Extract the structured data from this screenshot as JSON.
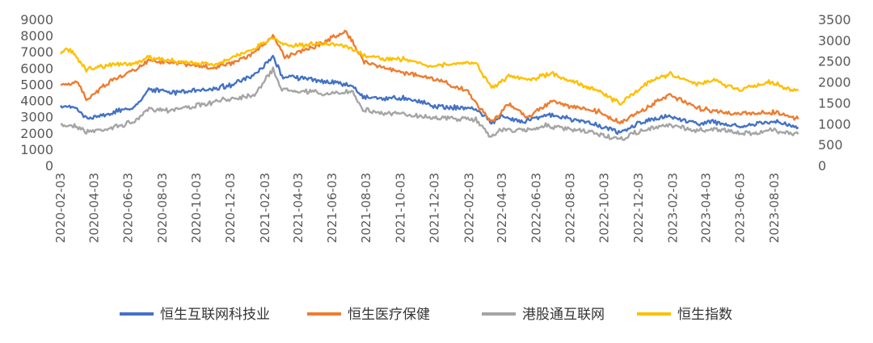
{
  "chart_data": {
    "type": "line",
    "title": "",
    "xlabel": "",
    "ylabel": "",
    "y_left": {
      "range": [
        0,
        9000
      ],
      "ticks": [
        0,
        1000,
        2000,
        3000,
        4000,
        5000,
        6000,
        7000,
        8000,
        9000
      ]
    },
    "y_right": {
      "range": [
        0,
        3500
      ],
      "ticks": [
        0,
        500,
        1000,
        1500,
        2000,
        2500,
        3000,
        3500
      ]
    },
    "x_range": [
      "2020-02-03",
      "2023-10-03"
    ],
    "x_tick_labels": [
      "2020-02-03",
      "2020-04-03",
      "2020-06-03",
      "2020-08-03",
      "2020-10-03",
      "2020-12-03",
      "2021-02-03",
      "2021-04-03",
      "2021-06-03",
      "2021-08-03",
      "2021-10-03",
      "2021-12-03",
      "2022-02-03",
      "2022-04-03",
      "2022-06-03",
      "2022-08-03",
      "2022-10-03",
      "2022-12-03",
      "2023-02-03",
      "2023-04-03",
      "2023-06-03",
      "2023-08-03"
    ],
    "grid": false,
    "legend_position": "bottom",
    "series": [
      {
        "name": "恒生互联网科技业",
        "axis": "right",
        "color": "#4472C4",
        "points": [
          [
            "2020-02-03",
            1420
          ],
          [
            "2020-03-01",
            1380
          ],
          [
            "2020-03-20",
            1130
          ],
          [
            "2020-05-01",
            1250
          ],
          [
            "2020-06-15",
            1400
          ],
          [
            "2020-07-10",
            1840
          ],
          [
            "2020-08-15",
            1750
          ],
          [
            "2020-10-15",
            1800
          ],
          [
            "2020-12-01",
            1920
          ],
          [
            "2021-01-15",
            2150
          ],
          [
            "2021-02-17",
            2600
          ],
          [
            "2021-03-05",
            2150
          ],
          [
            "2021-04-15",
            2080
          ],
          [
            "2021-06-01",
            2000
          ],
          [
            "2021-07-10",
            1900
          ],
          [
            "2021-07-28",
            1650
          ],
          [
            "2021-09-01",
            1610
          ],
          [
            "2021-10-15",
            1620
          ],
          [
            "2021-12-01",
            1430
          ],
          [
            "2022-01-15",
            1380
          ],
          [
            "2022-02-15",
            1360
          ],
          [
            "2022-03-15",
            1030
          ],
          [
            "2022-04-01",
            1160
          ],
          [
            "2022-05-10",
            1060
          ],
          [
            "2022-06-20",
            1220
          ],
          [
            "2022-08-01",
            1120
          ],
          [
            "2022-09-15",
            1000
          ],
          [
            "2022-10-31",
            770
          ],
          [
            "2022-12-01",
            1000
          ],
          [
            "2023-01-27",
            1190
          ],
          [
            "2023-03-15",
            1010
          ],
          [
            "2023-04-15",
            1040
          ],
          [
            "2023-06-01",
            920
          ],
          [
            "2023-07-15",
            1020
          ],
          [
            "2023-08-01",
            1050
          ],
          [
            "2023-09-15",
            910
          ]
        ]
      },
      {
        "name": "恒生医疗保健",
        "axis": "right",
        "color": "#ED7D31",
        "points": [
          [
            "2020-02-03",
            1900
          ],
          [
            "2020-03-05",
            2000
          ],
          [
            "2020-03-20",
            1590
          ],
          [
            "2020-05-01",
            2020
          ],
          [
            "2020-06-15",
            2300
          ],
          [
            "2020-07-10",
            2530
          ],
          [
            "2020-09-15",
            2420
          ],
          [
            "2020-11-01",
            2330
          ],
          [
            "2020-12-15",
            2480
          ],
          [
            "2021-01-15",
            2700
          ],
          [
            "2021-02-17",
            3120
          ],
          [
            "2021-03-10",
            2600
          ],
          [
            "2021-04-15",
            2780
          ],
          [
            "2021-05-20",
            2950
          ],
          [
            "2021-06-28",
            3230
          ],
          [
            "2021-07-28",
            2500
          ],
          [
            "2021-09-15",
            2300
          ],
          [
            "2021-11-01",
            2160
          ],
          [
            "2021-12-15",
            2020
          ],
          [
            "2022-02-01",
            1760
          ],
          [
            "2022-03-15",
            1030
          ],
          [
            "2022-04-15",
            1460
          ],
          [
            "2022-05-20",
            1160
          ],
          [
            "2022-07-01",
            1550
          ],
          [
            "2022-08-15",
            1370
          ],
          [
            "2022-09-25",
            1280
          ],
          [
            "2022-10-31",
            1020
          ],
          [
            "2022-12-15",
            1350
          ],
          [
            "2023-01-27",
            1700
          ],
          [
            "2023-03-15",
            1380
          ],
          [
            "2023-04-15",
            1320
          ],
          [
            "2023-06-01",
            1230
          ],
          [
            "2023-07-20",
            1270
          ],
          [
            "2023-08-15",
            1250
          ],
          [
            "2023-09-15",
            1110
          ]
        ]
      },
      {
        "name": "港股通互联网",
        "axis": "right",
        "color": "#A5A5A5",
        "points": [
          [
            "2020-02-03",
            960
          ],
          [
            "2020-03-01",
            960
          ],
          [
            "2020-03-20",
            800
          ],
          [
            "2020-05-01",
            890
          ],
          [
            "2020-06-15",
            1050
          ],
          [
            "2020-07-10",
            1360
          ],
          [
            "2020-08-15",
            1330
          ],
          [
            "2020-10-15",
            1450
          ],
          [
            "2020-12-01",
            1600
          ],
          [
            "2021-01-15",
            1700
          ],
          [
            "2021-02-17",
            2300
          ],
          [
            "2021-03-05",
            1820
          ],
          [
            "2021-04-15",
            1780
          ],
          [
            "2021-06-01",
            1700
          ],
          [
            "2021-07-10",
            1780
          ],
          [
            "2021-07-28",
            1340
          ],
          [
            "2021-09-01",
            1250
          ],
          [
            "2021-10-15",
            1220
          ],
          [
            "2021-12-01",
            1150
          ],
          [
            "2022-01-15",
            1120
          ],
          [
            "2022-02-15",
            1100
          ],
          [
            "2022-03-15",
            680
          ],
          [
            "2022-04-01",
            860
          ],
          [
            "2022-05-10",
            830
          ],
          [
            "2022-06-20",
            960
          ],
          [
            "2022-08-01",
            860
          ],
          [
            "2022-09-15",
            780
          ],
          [
            "2022-10-31",
            610
          ],
          [
            "2022-12-01",
            800
          ],
          [
            "2023-01-27",
            980
          ],
          [
            "2023-03-15",
            830
          ],
          [
            "2023-04-15",
            880
          ],
          [
            "2023-06-01",
            770
          ],
          [
            "2023-07-15",
            800
          ],
          [
            "2023-08-01",
            850
          ],
          [
            "2023-09-15",
            750
          ]
        ]
      },
      {
        "name": "恒生指数",
        "axis": "right",
        "color": "#FFC000",
        "points": [
          [
            "2020-02-03",
            2690
          ],
          [
            "2020-02-20",
            2800
          ],
          [
            "2020-03-20",
            2300
          ],
          [
            "2020-05-01",
            2420
          ],
          [
            "2020-06-15",
            2440
          ],
          [
            "2020-07-10",
            2580
          ],
          [
            "2020-09-15",
            2470
          ],
          [
            "2020-10-30",
            2410
          ],
          [
            "2020-12-15",
            2620
          ],
          [
            "2021-01-15",
            2800
          ],
          [
            "2021-02-17",
            3060
          ],
          [
            "2021-03-10",
            2890
          ],
          [
            "2021-04-15",
            2880
          ],
          [
            "2021-05-20",
            2920
          ],
          [
            "2021-06-28",
            2880
          ],
          [
            "2021-07-28",
            2620
          ],
          [
            "2021-09-01",
            2560
          ],
          [
            "2021-10-15",
            2540
          ],
          [
            "2021-12-01",
            2380
          ],
          [
            "2022-01-15",
            2440
          ],
          [
            "2022-02-15",
            2460
          ],
          [
            "2022-03-15",
            1850
          ],
          [
            "2022-04-15",
            2120
          ],
          [
            "2022-05-20",
            2050
          ],
          [
            "2022-07-01",
            2200
          ],
          [
            "2022-08-15",
            1980
          ],
          [
            "2022-09-25",
            1780
          ],
          [
            "2022-10-31",
            1480
          ],
          [
            "2022-12-15",
            1950
          ],
          [
            "2023-01-27",
            2200
          ],
          [
            "2023-03-15",
            1950
          ],
          [
            "2023-04-15",
            2040
          ],
          [
            "2023-06-01",
            1820
          ],
          [
            "2023-07-31",
            2010
          ],
          [
            "2023-08-20",
            1840
          ],
          [
            "2023-09-15",
            1800
          ]
        ]
      }
    ]
  }
}
